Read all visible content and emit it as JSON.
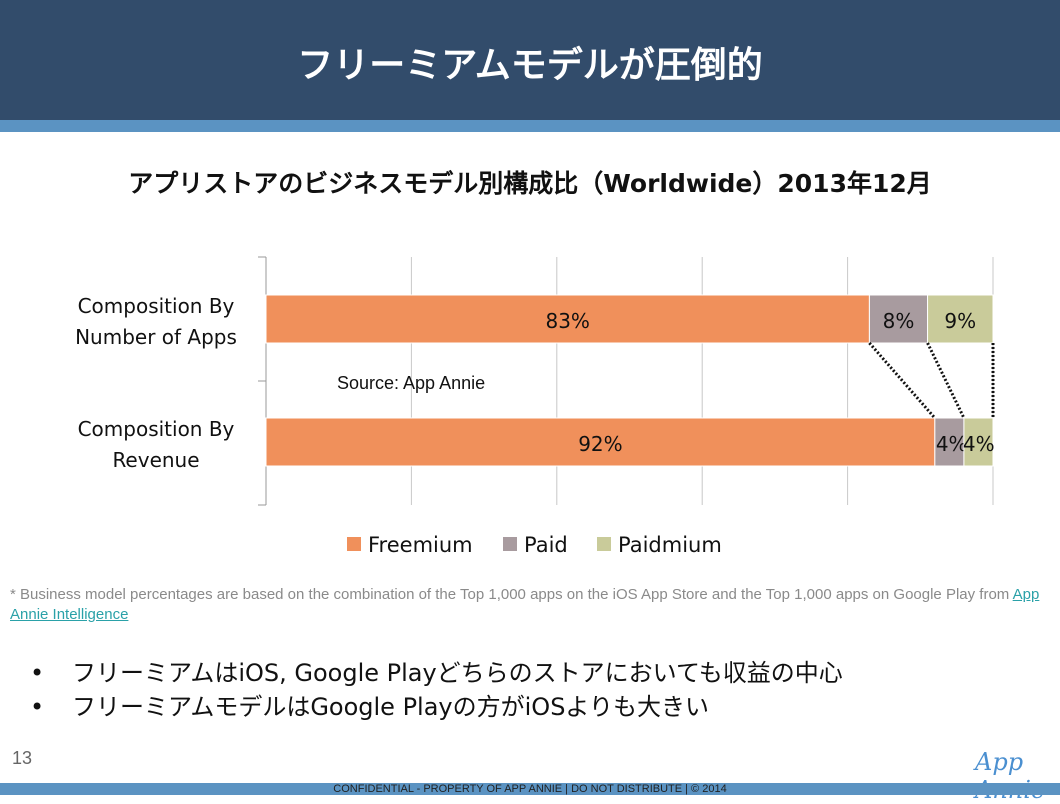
{
  "slide": {
    "title": "フリーミアムモデルが圧倒的",
    "page_number": "13",
    "logo_text": "App Annie",
    "confidential": "CONFIDENTIAL - PROPERTY OF APP ANNIE | DO NOT DISTRIBUTE | © 2014"
  },
  "chart_data": {
    "type": "bar",
    "orientation": "horizontal",
    "stacked": true,
    "title": "アプリストアのビジネスモデル別構成比（Worldwide）2013年12月",
    "categories": [
      "Composition By Number of Apps",
      "Composition By Revenue"
    ],
    "category_lines": [
      [
        "Composition By",
        "Number of Apps"
      ],
      [
        "Composition By",
        "Revenue"
      ]
    ],
    "series": [
      {
        "name": "Freemium",
        "values": [
          83,
          92
        ],
        "labels": [
          "83%",
          "92%"
        ],
        "color": "#f0905b"
      },
      {
        "name": "Paid",
        "values": [
          8,
          4
        ],
        "labels": [
          "8%",
          "4%"
        ],
        "color": "#a89b9f"
      },
      {
        "name": "Paidmium",
        "values": [
          9,
          4
        ],
        "labels": [
          "9%",
          "4%"
        ],
        "color": "#c9cb9a"
      }
    ],
    "xlim": [
      0,
      100
    ],
    "grid": true,
    "legend": "bottom",
    "annotation": "Source: App Annie"
  },
  "footnote": {
    "text": "* Business model percentages are based on the combination of the Top 1,000 apps on the iOS App Store and the Top 1,000 apps on Google Play from ",
    "link": "App Annie Intelligence"
  },
  "bullets": [
    "フリーミアムはiOS, Google Playどちらのストアにおいても収益の中心",
    "フリーミアムモデルはGoogle Playの方がiOSよりも大きい"
  ],
  "bullet_symbol": "•"
}
